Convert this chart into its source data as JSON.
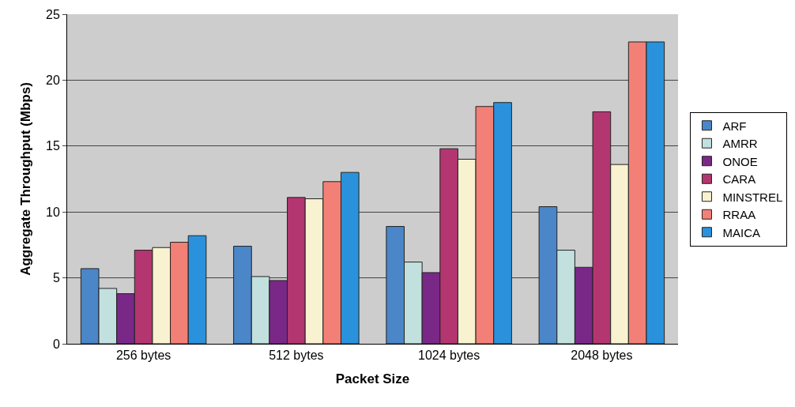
{
  "chart_data": {
    "type": "bar",
    "xlabel": "Packet Size",
    "ylabel": "Aggregate Throughput (Mbps)",
    "categories": [
      "256 bytes",
      "512 bytes",
      "1024 bytes",
      "2048 bytes"
    ],
    "series": [
      {
        "name": "ARF",
        "color": "#4a86c8",
        "values": [
          5.7,
          7.4,
          8.9,
          10.4
        ]
      },
      {
        "name": "AMRR",
        "color": "#c2e0de",
        "values": [
          4.2,
          5.1,
          6.2,
          7.1
        ]
      },
      {
        "name": "ONOE",
        "color": "#7a2888",
        "values": [
          3.8,
          4.8,
          5.4,
          5.8
        ]
      },
      {
        "name": "CARA",
        "color": "#b43670",
        "values": [
          7.1,
          11.1,
          14.8,
          17.6
        ]
      },
      {
        "name": "MINSTREL",
        "color": "#f8f2d0",
        "values": [
          7.3,
          11.0,
          14.0,
          13.6
        ]
      },
      {
        "name": "RRAA",
        "color": "#f38076",
        "values": [
          7.7,
          12.3,
          18.0,
          22.9
        ]
      },
      {
        "name": "MAICA",
        "color": "#2a92dc",
        "values": [
          8.2,
          13.0,
          18.3,
          22.9
        ]
      }
    ],
    "ylim": [
      0,
      25
    ],
    "yticks": [
      0,
      5,
      10,
      15,
      20,
      25
    ],
    "grid": "y",
    "legend": "right"
  }
}
